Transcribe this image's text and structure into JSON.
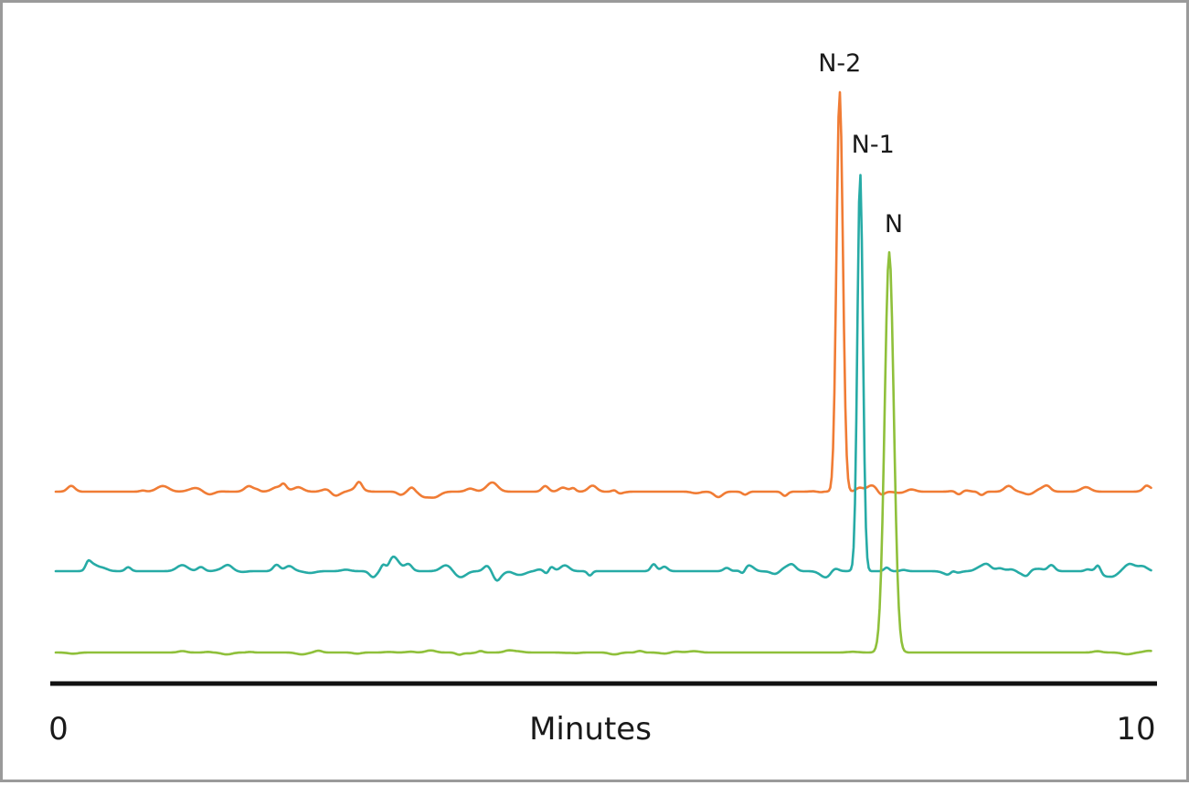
{
  "chart_data": {
    "type": "line",
    "xlabel": "Minutes",
    "xlim": [
      0,
      10
    ],
    "x_ticks": [
      "0",
      "10"
    ],
    "grid": false,
    "y_axis_shown": false,
    "series": [
      {
        "name": "N-2",
        "color": "#f07c35",
        "baseline": 0.0,
        "peak_time": 7.25,
        "peak_height": 1.0,
        "peak_width": 0.07
      },
      {
        "name": "N-1",
        "color": "#27aba6",
        "baseline": 0.0,
        "peak_time": 7.44,
        "peak_height": 1.0,
        "peak_width": 0.06
      },
      {
        "name": "N",
        "color": "#8fc03b",
        "baseline": 0.0,
        "peak_time": 7.71,
        "peak_height": 1.0,
        "peak_width": 0.1
      }
    ]
  }
}
